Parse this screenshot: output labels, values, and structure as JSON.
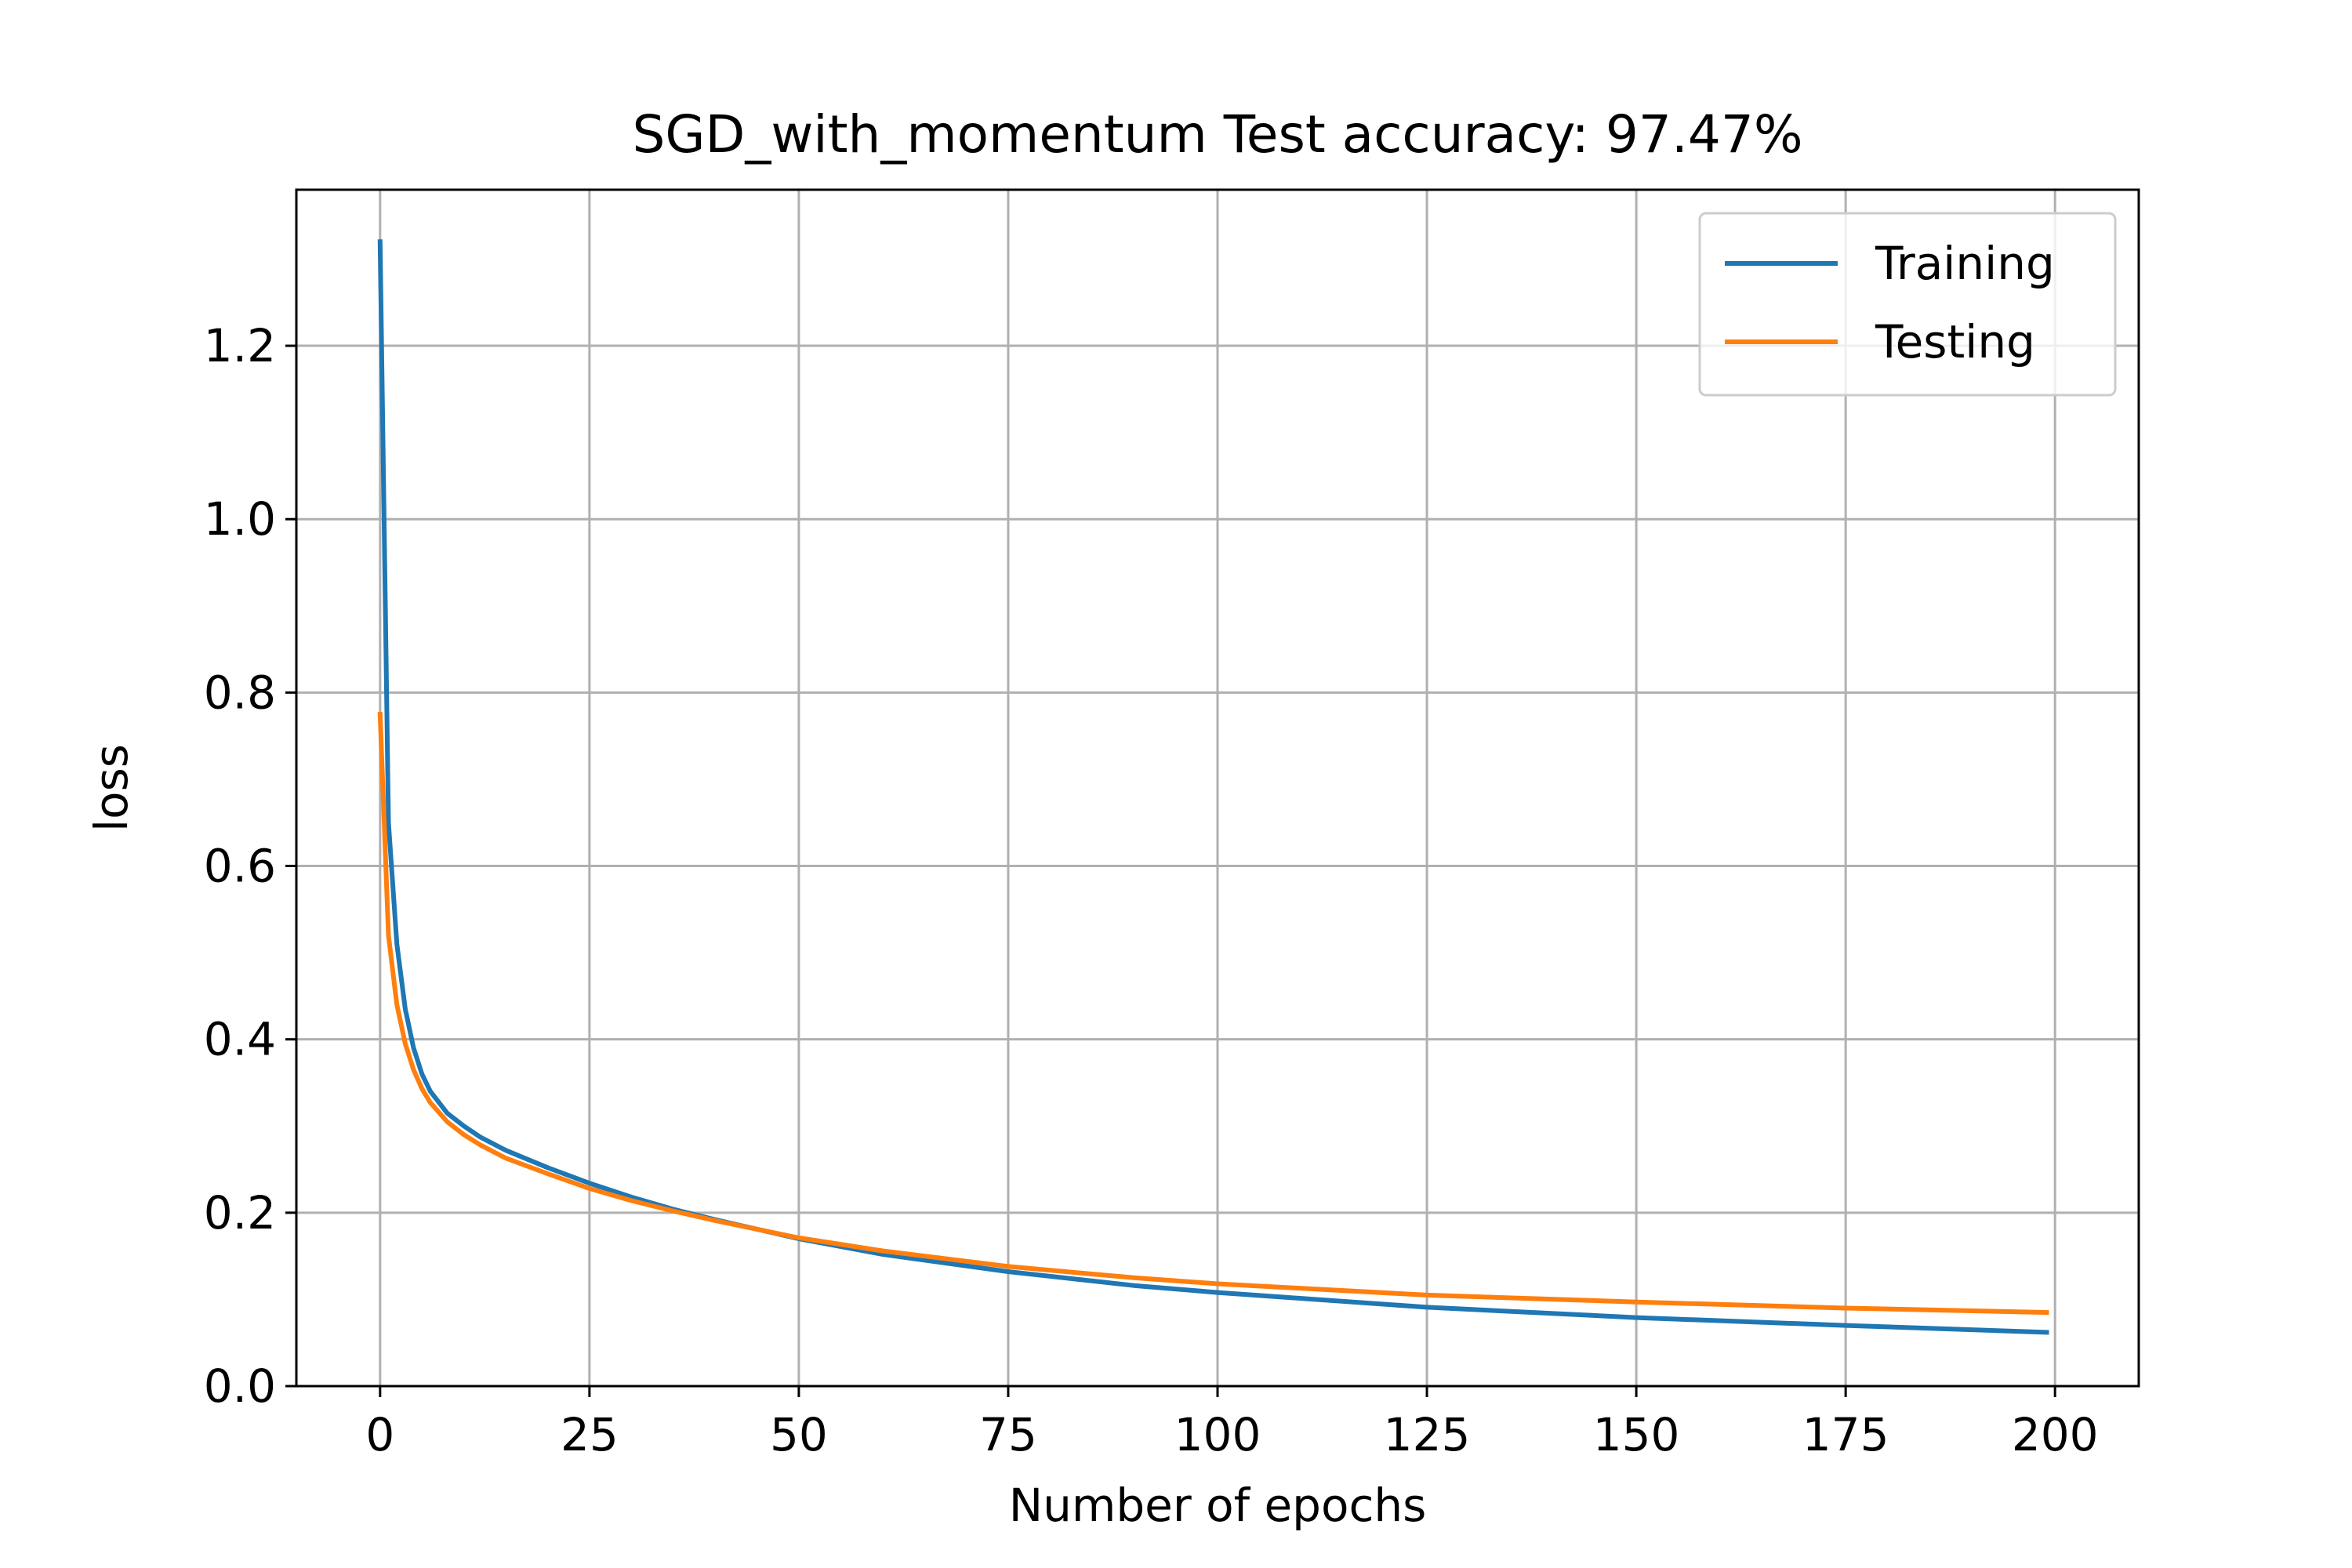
{
  "chart_data": {
    "type": "line",
    "title": "SGD_with_momentum Test accuracy: 97.47%",
    "xlabel": "Number of epochs",
    "ylabel": "loss",
    "xlim": [
      -10,
      210
    ],
    "ylim": [
      0,
      1.38
    ],
    "xticks": [
      0,
      25,
      50,
      75,
      100,
      125,
      150,
      175,
      200
    ],
    "yticks": [
      0.0,
      0.2,
      0.4,
      0.6,
      0.8,
      1.0,
      1.2
    ],
    "xtick_labels": [
      "0",
      "25",
      "50",
      "75",
      "100",
      "125",
      "150",
      "175",
      "200"
    ],
    "ytick_labels": [
      "0.0",
      "0.2",
      "0.4",
      "0.6",
      "0.8",
      "1.0",
      "1.2"
    ],
    "grid": true,
    "legend_position": "top-right",
    "series": [
      {
        "name": "Training",
        "color": "#1f77b4",
        "x": [
          0,
          1,
          2,
          3,
          4,
          5,
          6,
          8,
          10,
          12,
          15,
          20,
          25,
          30,
          35,
          40,
          50,
          60,
          75,
          90,
          100,
          125,
          150,
          175,
          199
        ],
        "y": [
          1.32,
          0.65,
          0.51,
          0.435,
          0.39,
          0.36,
          0.34,
          0.315,
          0.3,
          0.287,
          0.272,
          0.252,
          0.234,
          0.218,
          0.204,
          0.192,
          0.17,
          0.152,
          0.132,
          0.116,
          0.108,
          0.091,
          0.079,
          0.07,
          0.062
        ]
      },
      {
        "name": "Testing",
        "color": "#ff7f0e",
        "x": [
          0,
          1,
          2,
          3,
          4,
          5,
          6,
          8,
          10,
          12,
          15,
          20,
          25,
          30,
          35,
          40,
          50,
          60,
          75,
          90,
          100,
          125,
          150,
          175,
          199
        ],
        "y": [
          0.775,
          0.52,
          0.44,
          0.395,
          0.365,
          0.343,
          0.327,
          0.305,
          0.29,
          0.278,
          0.263,
          0.245,
          0.228,
          0.214,
          0.202,
          0.191,
          0.171,
          0.156,
          0.138,
          0.125,
          0.118,
          0.105,
          0.097,
          0.09,
          0.085
        ]
      }
    ]
  }
}
